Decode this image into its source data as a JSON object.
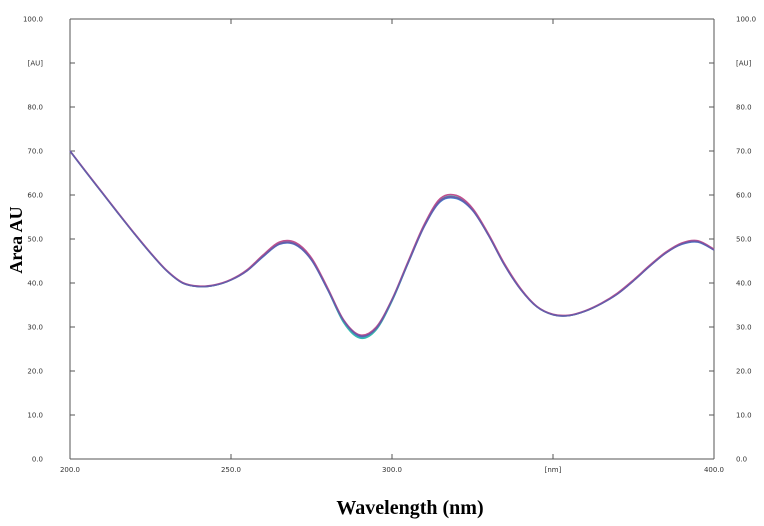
{
  "chart_data": {
    "type": "line",
    "xlabel": "Wavelength (nm)",
    "ylabel": "Area AU",
    "xlim": [
      200.0,
      400.0
    ],
    "ylim": [
      0.0,
      100.0
    ],
    "grid": false,
    "x_ticks": [
      {
        "value": 200,
        "label": "200.0"
      },
      {
        "value": 250,
        "label": "250.0"
      },
      {
        "value": 300,
        "label": "300.0"
      },
      {
        "value": 350,
        "label": "[nm]"
      },
      {
        "value": 400,
        "label": "400.0"
      }
    ],
    "y_ticks_left": [
      {
        "value": 0,
        "label": "0.0"
      },
      {
        "value": 10,
        "label": "10.0"
      },
      {
        "value": 20,
        "label": "20.0"
      },
      {
        "value": 30,
        "label": "30.0"
      },
      {
        "value": 40,
        "label": "40.0"
      },
      {
        "value": 50,
        "label": "50.0"
      },
      {
        "value": 60,
        "label": "60.0"
      },
      {
        "value": 70,
        "label": "70.0"
      },
      {
        "value": 80,
        "label": "80.0"
      },
      {
        "value": 90,
        "label": "[AU]"
      },
      {
        "value": 100,
        "label": "100.0"
      }
    ],
    "y_ticks_right": [
      {
        "value": 0,
        "label": "0.0"
      },
      {
        "value": 10,
        "label": "10.0"
      },
      {
        "value": 20,
        "label": "20.0"
      },
      {
        "value": 30,
        "label": "30.0"
      },
      {
        "value": 40,
        "label": "40.0"
      },
      {
        "value": 50,
        "label": "50.0"
      },
      {
        "value": 60,
        "label": "60.0"
      },
      {
        "value": 70,
        "label": "70.0"
      },
      {
        "value": 80,
        "label": "80.0"
      },
      {
        "value": 90,
        "label": "[AU]"
      },
      {
        "value": 100,
        "label": "100.0"
      }
    ],
    "x": [
      200,
      205,
      210,
      215,
      220,
      225,
      230,
      235,
      240,
      245,
      250,
      255,
      260,
      265,
      270,
      275,
      280,
      285,
      290,
      295,
      300,
      305,
      310,
      315,
      320,
      325,
      330,
      335,
      340,
      345,
      350,
      355,
      360,
      365,
      370,
      375,
      380,
      385,
      390,
      395,
      400
    ],
    "series": [
      {
        "color": "#3f7fd0",
        "values": [
          70.0,
          65.2,
          60.5,
          55.8,
          51.2,
          46.8,
          42.8,
          40.0,
          39.2,
          39.5,
          40.7,
          42.8,
          46.0,
          48.8,
          48.7,
          45.2,
          38.5,
          31.2,
          27.8,
          29.5,
          36.0,
          44.5,
          52.8,
          58.5,
          59.2,
          56.5,
          50.8,
          44.0,
          38.5,
          34.6,
          32.8,
          32.6,
          33.6,
          35.3,
          37.5,
          40.5,
          43.8,
          46.8,
          48.8,
          49.3,
          47.5
        ]
      },
      {
        "color": "#35b8b0",
        "values": [
          70.0,
          65.2,
          60.5,
          55.8,
          51.2,
          46.8,
          42.8,
          40.0,
          39.2,
          39.5,
          40.7,
          42.9,
          46.2,
          49.0,
          48.9,
          45.4,
          38.6,
          31.0,
          27.5,
          29.3,
          35.9,
          44.6,
          53.0,
          58.8,
          59.5,
          56.7,
          50.9,
          44.1,
          38.6,
          34.6,
          32.8,
          32.6,
          33.6,
          35.3,
          37.6,
          40.6,
          43.9,
          46.9,
          49.0,
          49.5,
          47.6
        ]
      },
      {
        "color": "#c0508f",
        "values": [
          70.0,
          65.3,
          60.6,
          55.9,
          51.3,
          46.9,
          42.9,
          40.1,
          39.3,
          39.6,
          40.8,
          43.0,
          46.4,
          49.3,
          49.2,
          45.7,
          38.9,
          31.6,
          28.2,
          29.9,
          36.3,
          44.9,
          53.3,
          59.2,
          59.9,
          57.0,
          51.1,
          44.3,
          38.7,
          34.7,
          32.9,
          32.7,
          33.7,
          35.4,
          37.7,
          40.7,
          44.0,
          47.0,
          49.1,
          49.6,
          47.7
        ]
      },
      {
        "color": "#6a5aa8",
        "values": [
          70.0,
          65.2,
          60.5,
          55.8,
          51.2,
          46.8,
          42.8,
          40.0,
          39.2,
          39.5,
          40.7,
          42.8,
          46.1,
          48.9,
          48.8,
          45.3,
          38.6,
          31.4,
          28.0,
          29.6,
          36.1,
          44.6,
          52.9,
          58.7,
          59.4,
          56.6,
          50.8,
          44.0,
          38.5,
          34.6,
          32.8,
          32.6,
          33.6,
          35.3,
          37.5,
          40.5,
          43.8,
          46.8,
          48.9,
          49.4,
          47.5
        ]
      }
    ]
  }
}
